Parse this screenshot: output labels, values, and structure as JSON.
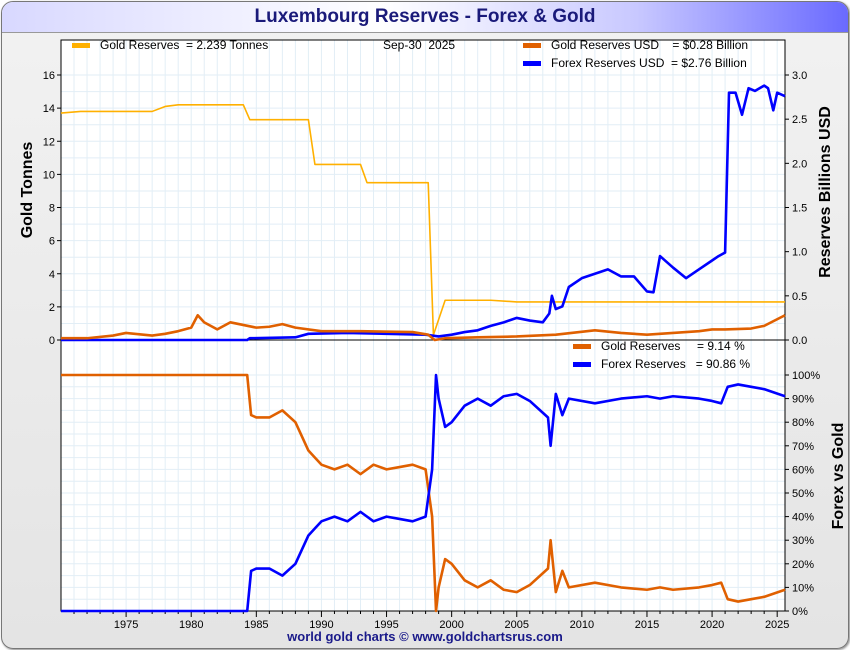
{
  "title": "Luxembourg Reserves - Forex & Gold",
  "footer": "world gold charts © www.goldchartsrus.com",
  "colors": {
    "gold_tonnes": "#ffb000",
    "gold_usd": "#e06000",
    "forex": "#0000ff"
  },
  "chart_data": [
    {
      "type": "line",
      "panel": "top",
      "legend": {
        "gold_tonnes": "Gold Reserves  = 2.239 Tonnes",
        "date": "Sep-30  2025",
        "gold_usd": "Gold Reserves USD    = $0.28 Billion",
        "forex": "Forex Reserves USD  = $2.76 Billion"
      },
      "ylabel_left": "Gold Tonnes",
      "ylabel_right": "Reserves Billions USD",
      "ylim_left": [
        0,
        16
      ],
      "ylim_right": [
        0,
        3
      ],
      "xlim": [
        1970,
        2025.6
      ],
      "yticks_left": [
        "0",
        "2",
        "4",
        "6",
        "8",
        "10",
        "12",
        "14",
        "16"
      ],
      "yticks_right": [
        "0.0",
        "0.5",
        "1.0",
        "1.5",
        "2.0",
        "2.5",
        "3.0"
      ],
      "series": [
        {
          "name": "Gold Reserves (Tonnes)",
          "axis": "left",
          "color": "gold_tonnes",
          "x": [
            1970,
            1971.5,
            1977,
            1978,
            1979,
            1984,
            1984.5,
            1989,
            1989.5,
            1993,
            1993.5,
            1998.2,
            1998.6,
            1999.5,
            2003,
            2005,
            2025.6
          ],
          "y": [
            13.7,
            13.8,
            13.8,
            14.1,
            14.2,
            14.2,
            13.3,
            13.3,
            10.6,
            10.6,
            9.5,
            9.5,
            0.3,
            2.4,
            2.4,
            2.3,
            2.3
          ]
        },
        {
          "name": "Gold Reserves USD",
          "axis": "right",
          "color": "gold_usd",
          "x": [
            1970,
            1972,
            1974,
            1975,
            1977,
            1978,
            1979,
            1980,
            1980.5,
            1981,
            1982,
            1983,
            1985,
            1986,
            1987,
            1988,
            1990,
            1993,
            1997,
            1998.2,
            1998.7,
            1999.5,
            2002,
            2005,
            2008,
            2011,
            2013,
            2015,
            2019,
            2020,
            2021,
            2023,
            2024,
            2025.6
          ],
          "y": [
            0.02,
            0.02,
            0.05,
            0.08,
            0.05,
            0.07,
            0.1,
            0.14,
            0.28,
            0.2,
            0.12,
            0.2,
            0.14,
            0.15,
            0.18,
            0.14,
            0.1,
            0.1,
            0.09,
            0.06,
            0.0,
            0.02,
            0.03,
            0.04,
            0.06,
            0.11,
            0.08,
            0.06,
            0.1,
            0.12,
            0.12,
            0.13,
            0.16,
            0.28
          ]
        },
        {
          "name": "Forex Reserves USD",
          "axis": "right",
          "color": "forex",
          "x": [
            1970,
            1984.3,
            1984.5,
            1988,
            1989,
            1992,
            1995,
            1998,
            1998.5,
            1999,
            2000,
            2001,
            2002,
            2003,
            2004,
            2005,
            2006,
            2007,
            2007.5,
            2007.7,
            2008,
            2008.5,
            2009,
            2010,
            2011,
            2012,
            2013,
            2014,
            2015,
            2015.5,
            2016,
            2017,
            2018,
            2019,
            2020,
            2020.5,
            2021,
            2021.3,
            2021.8,
            2022.3,
            2022.8,
            2023.3,
            2024,
            2024.3,
            2024.7,
            2025,
            2025.6
          ],
          "y": [
            0,
            0,
            0.02,
            0.03,
            0.07,
            0.08,
            0.07,
            0.06,
            0.05,
            0.04,
            0.06,
            0.09,
            0.11,
            0.16,
            0.2,
            0.25,
            0.22,
            0.2,
            0.3,
            0.5,
            0.35,
            0.38,
            0.6,
            0.7,
            0.75,
            0.8,
            0.72,
            0.72,
            0.55,
            0.54,
            0.95,
            0.82,
            0.7,
            0.8,
            0.9,
            0.95,
            0.99,
            2.8,
            2.8,
            2.55,
            2.85,
            2.82,
            2.88,
            2.85,
            2.6,
            2.8,
            2.76
          ]
        }
      ]
    },
    {
      "type": "line",
      "panel": "bottom",
      "legend": {
        "gold": "Gold Reserves     = 9.14 %",
        "forex": "Forex Reserves   = 90.86 %"
      },
      "ylabel_right": "Forex vs Gold",
      "ylim": [
        0,
        100
      ],
      "yticks_right": [
        "0%",
        "10%",
        "20%",
        "30%",
        "40%",
        "50%",
        "60%",
        "70%",
        "80%",
        "90%",
        "100%"
      ],
      "xticks": [
        "1975",
        "1980",
        "1985",
        "1990",
        "1995",
        "2000",
        "2005",
        "2010",
        "2015",
        "2020",
        "2025"
      ],
      "series": [
        {
          "name": "Gold Reserves %",
          "color": "gold_usd",
          "x": [
            1970,
            1984.3,
            1984.6,
            1985,
            1986,
            1987,
            1988,
            1989,
            1989.5,
            1990,
            1991,
            1992,
            1993,
            1994,
            1995,
            1996,
            1997,
            1998,
            1998.5,
            1998.8,
            1999,
            1999.5,
            2000,
            2001,
            2002,
            2003,
            2004,
            2005,
            2006,
            2007,
            2007.4,
            2007.6,
            2008,
            2008.5,
            2009,
            2011,
            2013,
            2015,
            2016,
            2017,
            2019,
            2020,
            2020.7,
            2021.2,
            2022,
            2023,
            2024,
            2025.6
          ],
          "y": [
            100,
            100,
            83,
            82,
            82,
            85,
            80,
            68,
            65,
            62,
            60,
            62,
            58,
            62,
            60,
            61,
            62,
            60,
            40,
            0,
            10,
            22,
            20,
            13,
            10,
            13,
            9,
            8,
            11,
            16,
            18,
            30,
            8,
            17,
            10,
            12,
            10,
            9,
            10,
            9,
            10,
            11,
            12,
            5,
            4,
            5,
            6,
            9
          ]
        },
        {
          "name": "Forex Reserves %",
          "color": "forex",
          "x": [
            1970,
            1984.3,
            1984.6,
            1985,
            1986,
            1987,
            1988,
            1989,
            1989.5,
            1990,
            1991,
            1992,
            1993,
            1994,
            1995,
            1996,
            1997,
            1998,
            1998.5,
            1998.8,
            1999,
            1999.5,
            2000,
            2001,
            2002,
            2003,
            2004,
            2005,
            2006,
            2007,
            2007.4,
            2007.6,
            2008,
            2008.5,
            2009,
            2011,
            2013,
            2015,
            2016,
            2017,
            2019,
            2020,
            2020.7,
            2021.2,
            2022,
            2023,
            2024,
            2025.6
          ],
          "y": [
            0,
            0,
            17,
            18,
            18,
            15,
            20,
            32,
            35,
            38,
            40,
            38,
            42,
            38,
            40,
            39,
            38,
            40,
            60,
            100,
            90,
            78,
            80,
            87,
            90,
            87,
            91,
            92,
            89,
            84,
            82,
            70,
            92,
            83,
            90,
            88,
            90,
            91,
            90,
            91,
            90,
            89,
            88,
            95,
            96,
            95,
            94,
            91
          ]
        }
      ]
    }
  ]
}
